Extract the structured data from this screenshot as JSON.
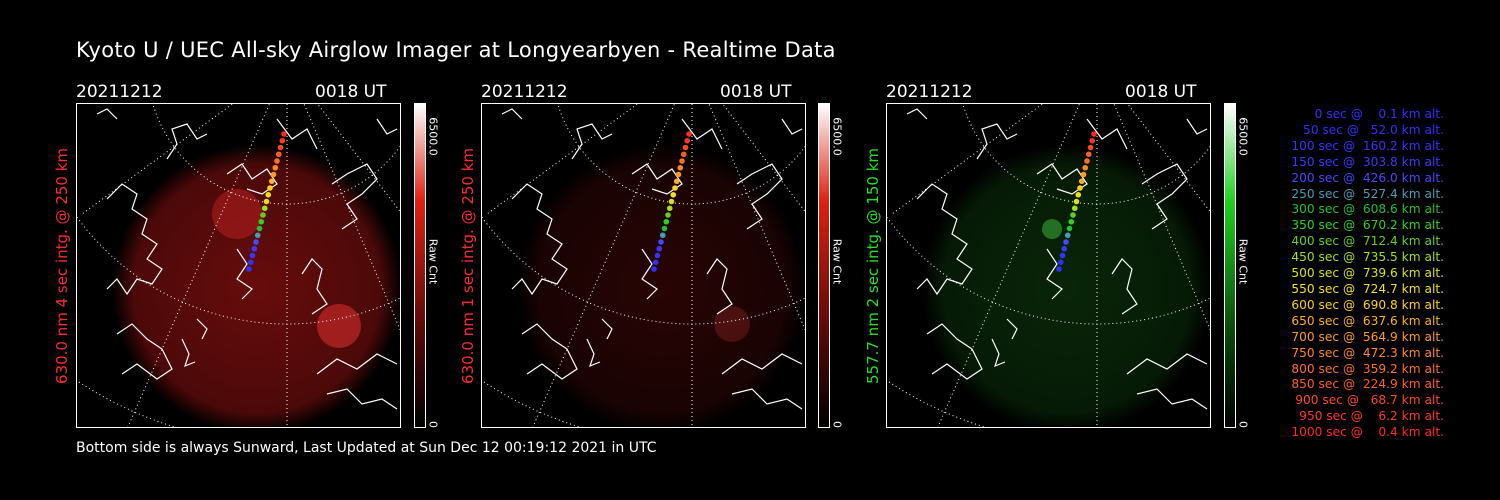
{
  "title": "Kyoto U / UEC All-sky Airglow Imager at Longyearbyen - Realtime Data",
  "footer": "Bottom side is always Sunward, Last Updated at Sun Dec 12 00:19:12 2021 in UTC",
  "colors": {
    "red_label": "#ff2020",
    "green_label": "#20e020",
    "background": "#000000"
  },
  "panels": [
    {
      "date": "20211212",
      "time": "0018 UT",
      "side_label": "630.0 nm 4 sec intg. @ 250 km",
      "label_color": "#ff2a2a",
      "cbar_max": "6500.0",
      "cbar_min": "0",
      "cbar_unit": "Raw Cnt",
      "glow_color": "#8a1010",
      "glow_strength": 0.55,
      "hot_spots": "red"
    },
    {
      "date": "20211212",
      "time": "0018 UT",
      "side_label": "630.0 nm 1 sec intg. @ 250 km",
      "label_color": "#ff2a2a",
      "cbar_max": "6500.0",
      "cbar_min": "0",
      "cbar_unit": "Raw Cnt",
      "glow_color": "#4a0808",
      "glow_strength": 0.35,
      "hot_spots": "dim-red"
    },
    {
      "date": "20211212",
      "time": "0018 UT",
      "side_label": "557.7 nm 2 sec intg. @ 150 km",
      "label_color": "#22e022",
      "cbar_max": "6500.0",
      "cbar_min": "0",
      "cbar_unit": "Raw Cnt",
      "glow_color": "#0d3a0d",
      "glow_strength": 0.45,
      "hot_spots": "green"
    }
  ],
  "legend": [
    {
      "text": "   0 sec @    0.1 km alt.",
      "color": "#3030ff"
    },
    {
      "text": "  50 sec @   52.0 km alt.",
      "color": "#3030ff"
    },
    {
      "text": " 100 sec @  160.2 km alt.",
      "color": "#3434ff"
    },
    {
      "text": " 150 sec @  303.8 km alt.",
      "color": "#3a3aff"
    },
    {
      "text": " 200 sec @  426.0 km alt.",
      "color": "#4848ff"
    },
    {
      "text": " 250 sec @  527.4 km alt.",
      "color": "#4a9ab8"
    },
    {
      "text": " 300 sec @  608.6 km alt.",
      "color": "#20c030"
    },
    {
      "text": " 350 sec @  670.2 km alt.",
      "color": "#30d020"
    },
    {
      "text": " 400 sec @  712.4 km alt.",
      "color": "#60d020"
    },
    {
      "text": " 450 sec @  735.5 km alt.",
      "color": "#a0e020"
    },
    {
      "text": " 500 sec @  739.6 km alt.",
      "color": "#d8e020"
    },
    {
      "text": " 550 sec @  724.7 km alt.",
      "color": "#f0e020"
    },
    {
      "text": " 600 sec @  690.8 km alt.",
      "color": "#ffd020"
    },
    {
      "text": " 650 sec @  637.6 km alt.",
      "color": "#ffb020"
    },
    {
      "text": " 700 sec @  564.9 km alt.",
      "color": "#ff9a20"
    },
    {
      "text": " 750 sec @  472.3 km alt.",
      "color": "#ff8820"
    },
    {
      "text": " 800 sec @  359.2 km alt.",
      "color": "#ff7020"
    },
    {
      "text": " 850 sec @  224.9 km alt.",
      "color": "#ff6020"
    },
    {
      "text": " 900 sec @   68.7 km alt.",
      "color": "#ff4a20"
    },
    {
      "text": " 950 sec @    6.2 km alt.",
      "color": "#ff3a20"
    },
    {
      "text": "1000 sec @    0.4 km alt.",
      "color": "#ff2a20"
    }
  ]
}
